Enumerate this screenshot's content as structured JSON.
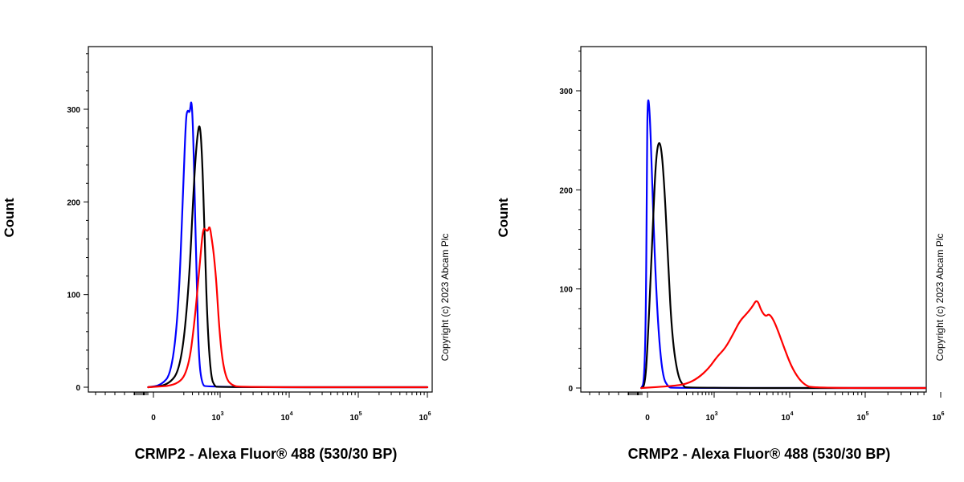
{
  "chart_data": [
    {
      "type": "line",
      "xlabel": "CRMP2 - Alexa Fluor® 488 (530/30 BP)",
      "ylabel": "Count",
      "watermark": "Copyright (c) 2023 Abcam Plc",
      "x_scale": "biexponential",
      "ylim": [
        0,
        360
      ],
      "y_ticks": [
        0,
        100,
        200,
        300
      ],
      "x_ticks": [
        {
          "value": 0,
          "base": "0",
          "exp": ""
        },
        {
          "value": 1000,
          "base": "10",
          "exp": "3"
        },
        {
          "value": 10000,
          "base": "10",
          "exp": "4"
        },
        {
          "value": 100000,
          "base": "10",
          "exp": "5"
        },
        {
          "value": 1000000,
          "base": "10",
          "exp": "6"
        }
      ],
      "grid": false,
      "series": [
        {
          "color": "#0000ff",
          "points": [
            [
              -60,
              0
            ],
            [
              40,
              2
            ],
            [
              100,
              15
            ],
            [
              150,
              80
            ],
            [
              190,
              200
            ],
            [
              220,
              290
            ],
            [
              240,
              300
            ],
            [
              265,
              295
            ],
            [
              290,
              315
            ],
            [
              320,
              250
            ],
            [
              360,
              120
            ],
            [
              400,
              30
            ],
            [
              460,
              3
            ],
            [
              560,
              0
            ],
            [
              1000000,
              0
            ]
          ]
        },
        {
          "color": "#000000",
          "points": [
            [
              -60,
              0
            ],
            [
              80,
              2
            ],
            [
              170,
              20
            ],
            [
              250,
              100
            ],
            [
              320,
              220
            ],
            [
              370,
              270
            ],
            [
              420,
              288
            ],
            [
              470,
              240
            ],
            [
              520,
              150
            ],
            [
              590,
              60
            ],
            [
              680,
              10
            ],
            [
              800,
              1
            ],
            [
              900,
              0
            ],
            [
              1000000,
              0
            ]
          ]
        },
        {
          "color": "#ff0000",
          "points": [
            [
              -60,
              0
            ],
            [
              150,
              2
            ],
            [
              250,
              20
            ],
            [
              330,
              70
            ],
            [
              420,
              135
            ],
            [
              480,
              172
            ],
            [
              540,
              170
            ],
            [
              590,
              168
            ],
            [
              640,
              175
            ],
            [
              700,
              160
            ],
            [
              760,
              145
            ],
            [
              850,
              115
            ],
            [
              960,
              65
            ],
            [
              1080,
              28
            ],
            [
              1250,
              8
            ],
            [
              1500,
              2
            ],
            [
              1900,
              0
            ],
            [
              1000000,
              0
            ]
          ]
        }
      ]
    },
    {
      "type": "line",
      "xlabel": "CRMP2 - Alexa Fluor® 488 (530/30 BP)",
      "ylabel": "Count",
      "watermark": "Copyright (c) 2023 Abcam Plc",
      "x_scale": "biexponential",
      "ylim": [
        0,
        300
      ],
      "y_ticks": [
        0,
        100,
        200,
        300
      ],
      "x_ticks": [
        {
          "value": 0,
          "base": "0",
          "exp": ""
        },
        {
          "value": 1000,
          "base": "10",
          "exp": "3"
        },
        {
          "value": 10000,
          "base": "10",
          "exp": "4"
        },
        {
          "value": 100000,
          "base": "10",
          "exp": "5"
        },
        {
          "value": 1000000,
          "base": "10",
          "exp": "6"
        }
      ],
      "grid": false,
      "series": [
        {
          "color": "#0000ff",
          "points": [
            [
              -70,
              0
            ],
            [
              -40,
              5
            ],
            [
              -20,
              60
            ],
            [
              -8,
              200
            ],
            [
              0,
              298
            ],
            [
              12,
              280
            ],
            [
              25,
              200
            ],
            [
              40,
              120
            ],
            [
              60,
              50
            ],
            [
              85,
              10
            ],
            [
              120,
              1
            ],
            [
              150,
              0
            ],
            [
              1000000,
              0
            ]
          ]
        },
        {
          "color": "#000000",
          "points": [
            [
              -70,
              0
            ],
            [
              -30,
              2
            ],
            [
              0,
              40
            ],
            [
              25,
              150
            ],
            [
              45,
              240
            ],
            [
              70,
              252
            ],
            [
              95,
              200
            ],
            [
              120,
              120
            ],
            [
              150,
              50
            ],
            [
              200,
              12
            ],
            [
              260,
              2
            ],
            [
              300,
              0
            ],
            [
              1000000,
              0
            ]
          ]
        },
        {
          "color": "#ff0000",
          "points": [
            [
              -70,
              0
            ],
            [
              150,
              2
            ],
            [
              300,
              4
            ],
            [
              500,
              10
            ],
            [
              800,
              20
            ],
            [
              1100,
              32
            ],
            [
              1400,
              40
            ],
            [
              1800,
              55
            ],
            [
              2200,
              68
            ],
            [
              2700,
              75
            ],
            [
              3200,
              82
            ],
            [
              3700,
              90
            ],
            [
              4200,
              78
            ],
            [
              4800,
              72
            ],
            [
              5300,
              75
            ],
            [
              6000,
              70
            ],
            [
              7000,
              58
            ],
            [
              8500,
              40
            ],
            [
              10500,
              22
            ],
            [
              13000,
              10
            ],
            [
              16000,
              3
            ],
            [
              20000,
              0
            ],
            [
              1000000,
              0
            ]
          ]
        }
      ]
    }
  ]
}
